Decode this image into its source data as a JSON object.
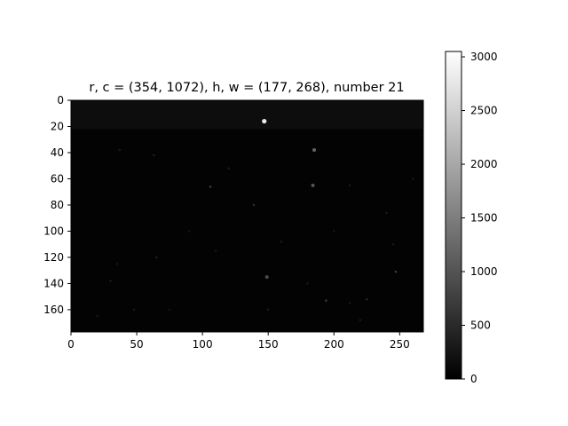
{
  "chart_data": {
    "type": "heatmap",
    "title": "r, c = (354, 1072), h, w = (177, 268), number 21",
    "colormap": "gray",
    "image_shape": [
      177,
      268
    ],
    "xlim": [
      0,
      268
    ],
    "ylim": [
      177,
      0
    ],
    "xticks": [
      0,
      50,
      100,
      150,
      200,
      250
    ],
    "yticks": [
      0,
      20,
      40,
      60,
      80,
      100,
      120,
      140,
      160
    ],
    "colorbar": {
      "min": 0,
      "max": 3050,
      "ticks": [
        0,
        500,
        1000,
        1500,
        2000,
        2500,
        3000
      ]
    },
    "background_band": {
      "row_start": 0,
      "row_end": 22,
      "level": 160
    },
    "background_level": 25,
    "bright_spots": [
      {
        "x": 147,
        "y": 16,
        "value": 2800
      },
      {
        "x": 185,
        "y": 38,
        "value": 1200
      },
      {
        "x": 184,
        "y": 65,
        "value": 1000
      },
      {
        "x": 106,
        "y": 66,
        "value": 700
      },
      {
        "x": 139,
        "y": 80,
        "value": 500
      },
      {
        "x": 149,
        "y": 135,
        "value": 900
      },
      {
        "x": 247,
        "y": 131,
        "value": 700
      },
      {
        "x": 194,
        "y": 153,
        "value": 650
      },
      {
        "x": 225,
        "y": 152,
        "value": 450
      },
      {
        "x": 63,
        "y": 42,
        "value": 350
      },
      {
        "x": 37,
        "y": 38,
        "value": 300
      },
      {
        "x": 212,
        "y": 65,
        "value": 300
      },
      {
        "x": 120,
        "y": 52,
        "value": 300
      },
      {
        "x": 65,
        "y": 120,
        "value": 350
      },
      {
        "x": 30,
        "y": 138,
        "value": 300
      },
      {
        "x": 160,
        "y": 108,
        "value": 300
      },
      {
        "x": 240,
        "y": 86,
        "value": 280
      },
      {
        "x": 212,
        "y": 155,
        "value": 300
      },
      {
        "x": 150,
        "y": 160,
        "value": 300
      },
      {
        "x": 48,
        "y": 160,
        "value": 280
      },
      {
        "x": 20,
        "y": 165,
        "value": 260
      },
      {
        "x": 220,
        "y": 168,
        "value": 300
      },
      {
        "x": 90,
        "y": 100,
        "value": 250
      },
      {
        "x": 35,
        "y": 125,
        "value": 250
      },
      {
        "x": 260,
        "y": 60,
        "value": 260
      },
      {
        "x": 245,
        "y": 110,
        "value": 250
      },
      {
        "x": 110,
        "y": 115,
        "value": 260
      },
      {
        "x": 200,
        "y": 100,
        "value": 240
      },
      {
        "x": 75,
        "y": 160,
        "value": 250
      },
      {
        "x": 180,
        "y": 140,
        "value": 270
      }
    ]
  }
}
